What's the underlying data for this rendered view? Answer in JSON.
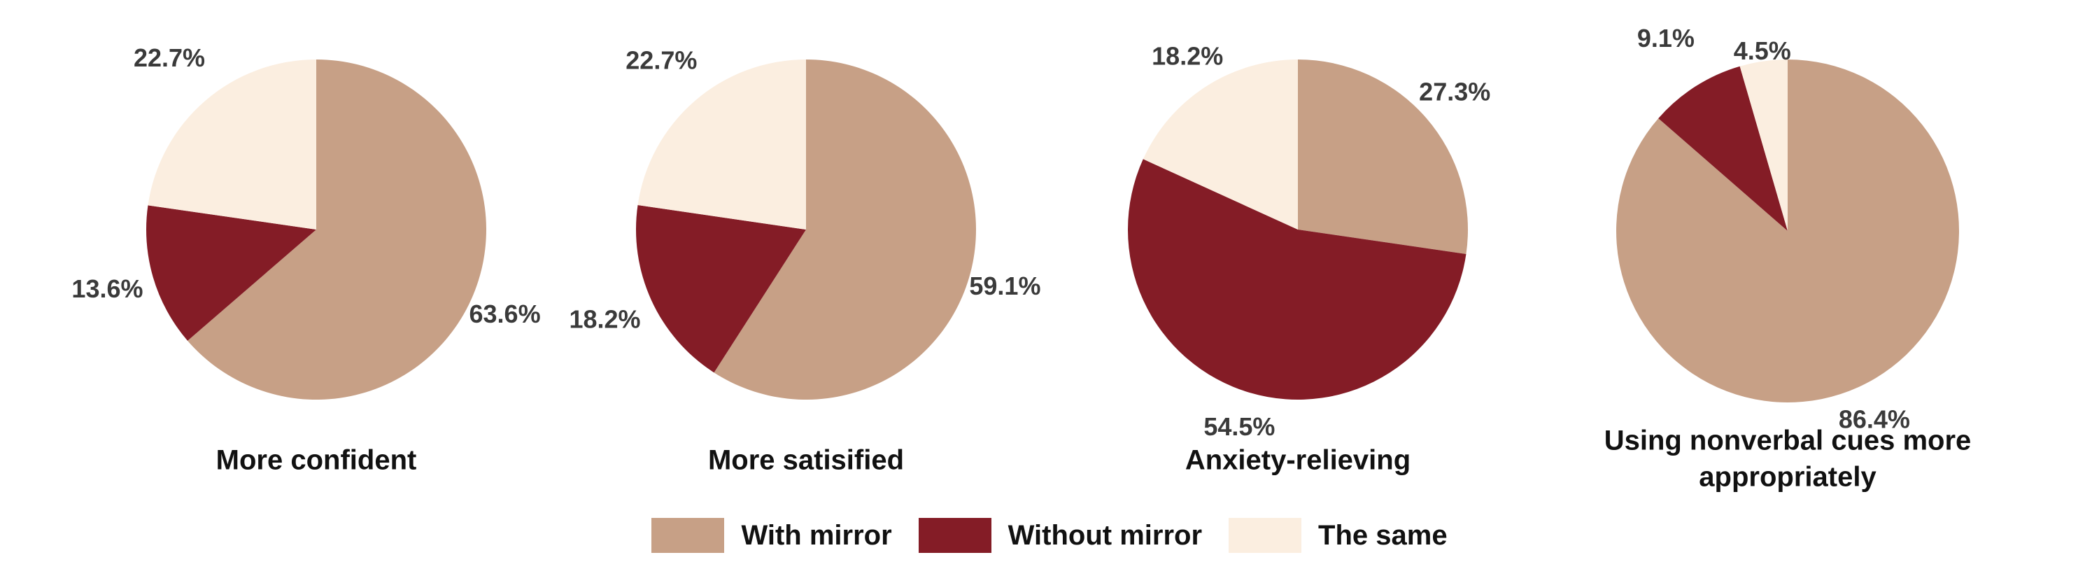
{
  "colors": {
    "with_mirror": "#c7a086",
    "without_mirror": "#841c26",
    "the_same": "#fbeee0"
  },
  "legend": [
    {
      "label": "With mirror",
      "color_key": "with_mirror"
    },
    {
      "label": "Without mirror",
      "color_key": "without_mirror"
    },
    {
      "label": "The same",
      "color_key": "the_same"
    }
  ],
  "chart_data": [
    {
      "type": "pie",
      "title": "More confident",
      "slices": [
        {
          "name": "With mirror",
          "value": 63.6,
          "label": "63.6%"
        },
        {
          "name": "Without mirror",
          "value": 13.6,
          "label": "13.6%"
        },
        {
          "name": "The same",
          "value": 22.7,
          "label": "22.7%"
        }
      ]
    },
    {
      "type": "pie",
      "title": "More satisified",
      "slices": [
        {
          "name": "With mirror",
          "value": 59.1,
          "label": "59.1%"
        },
        {
          "name": "Without mirror",
          "value": 18.2,
          "label": "18.2%"
        },
        {
          "name": "The same",
          "value": 22.7,
          "label": "22.7%"
        }
      ]
    },
    {
      "type": "pie",
      "title": "Anxiety-relieving",
      "slices": [
        {
          "name": "With mirror",
          "value": 27.3,
          "label": "27.3%"
        },
        {
          "name": "Without mirror",
          "value": 54.5,
          "label": "54.5%"
        },
        {
          "name": "The same",
          "value": 18.2,
          "label": "18.2%"
        }
      ]
    },
    {
      "type": "pie",
      "title": "Using nonverbal cues more appropriately",
      "slices": [
        {
          "name": "With mirror",
          "value": 86.4,
          "label": "86.4%"
        },
        {
          "name": "Without mirror",
          "value": 9.1,
          "label": "9.1%"
        },
        {
          "name": "The same",
          "value": 4.5,
          "label": "4.5%"
        }
      ]
    }
  ]
}
